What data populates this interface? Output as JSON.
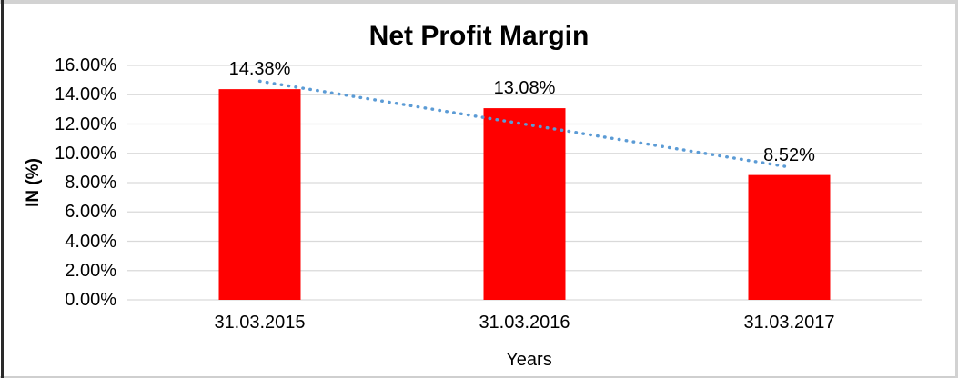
{
  "window": {
    "background": "#ffffff",
    "frame_border_gray": "#d2d2d2",
    "frame_border_dark": "#2a2a2a"
  },
  "chart_data": {
    "type": "bar",
    "title": "Net Profit Margin",
    "categories": [
      "31.03.2015",
      "31.03.2016",
      "31.03.2017"
    ],
    "values": [
      14.38,
      13.08,
      8.52
    ],
    "data_labels": [
      "14.38%",
      "13.08%",
      "8.52%"
    ],
    "xlabel": "Years",
    "ylabel": "IN (%)",
    "ylim": [
      0,
      16
    ],
    "y_tick_step": 2,
    "y_tick_labels": [
      "0.00%",
      "2.00%",
      "4.00%",
      "6.00%",
      "8.00%",
      "10.00%",
      "12.00%",
      "14.00%",
      "16.00%"
    ],
    "grid": true,
    "legend": "none",
    "bar_color": "#ff0000",
    "gridline_color": "#d9d9d9",
    "text_color": "#000000",
    "trendline": {
      "type": "linear",
      "style": "dotted",
      "color": "#5b9bd5"
    }
  }
}
